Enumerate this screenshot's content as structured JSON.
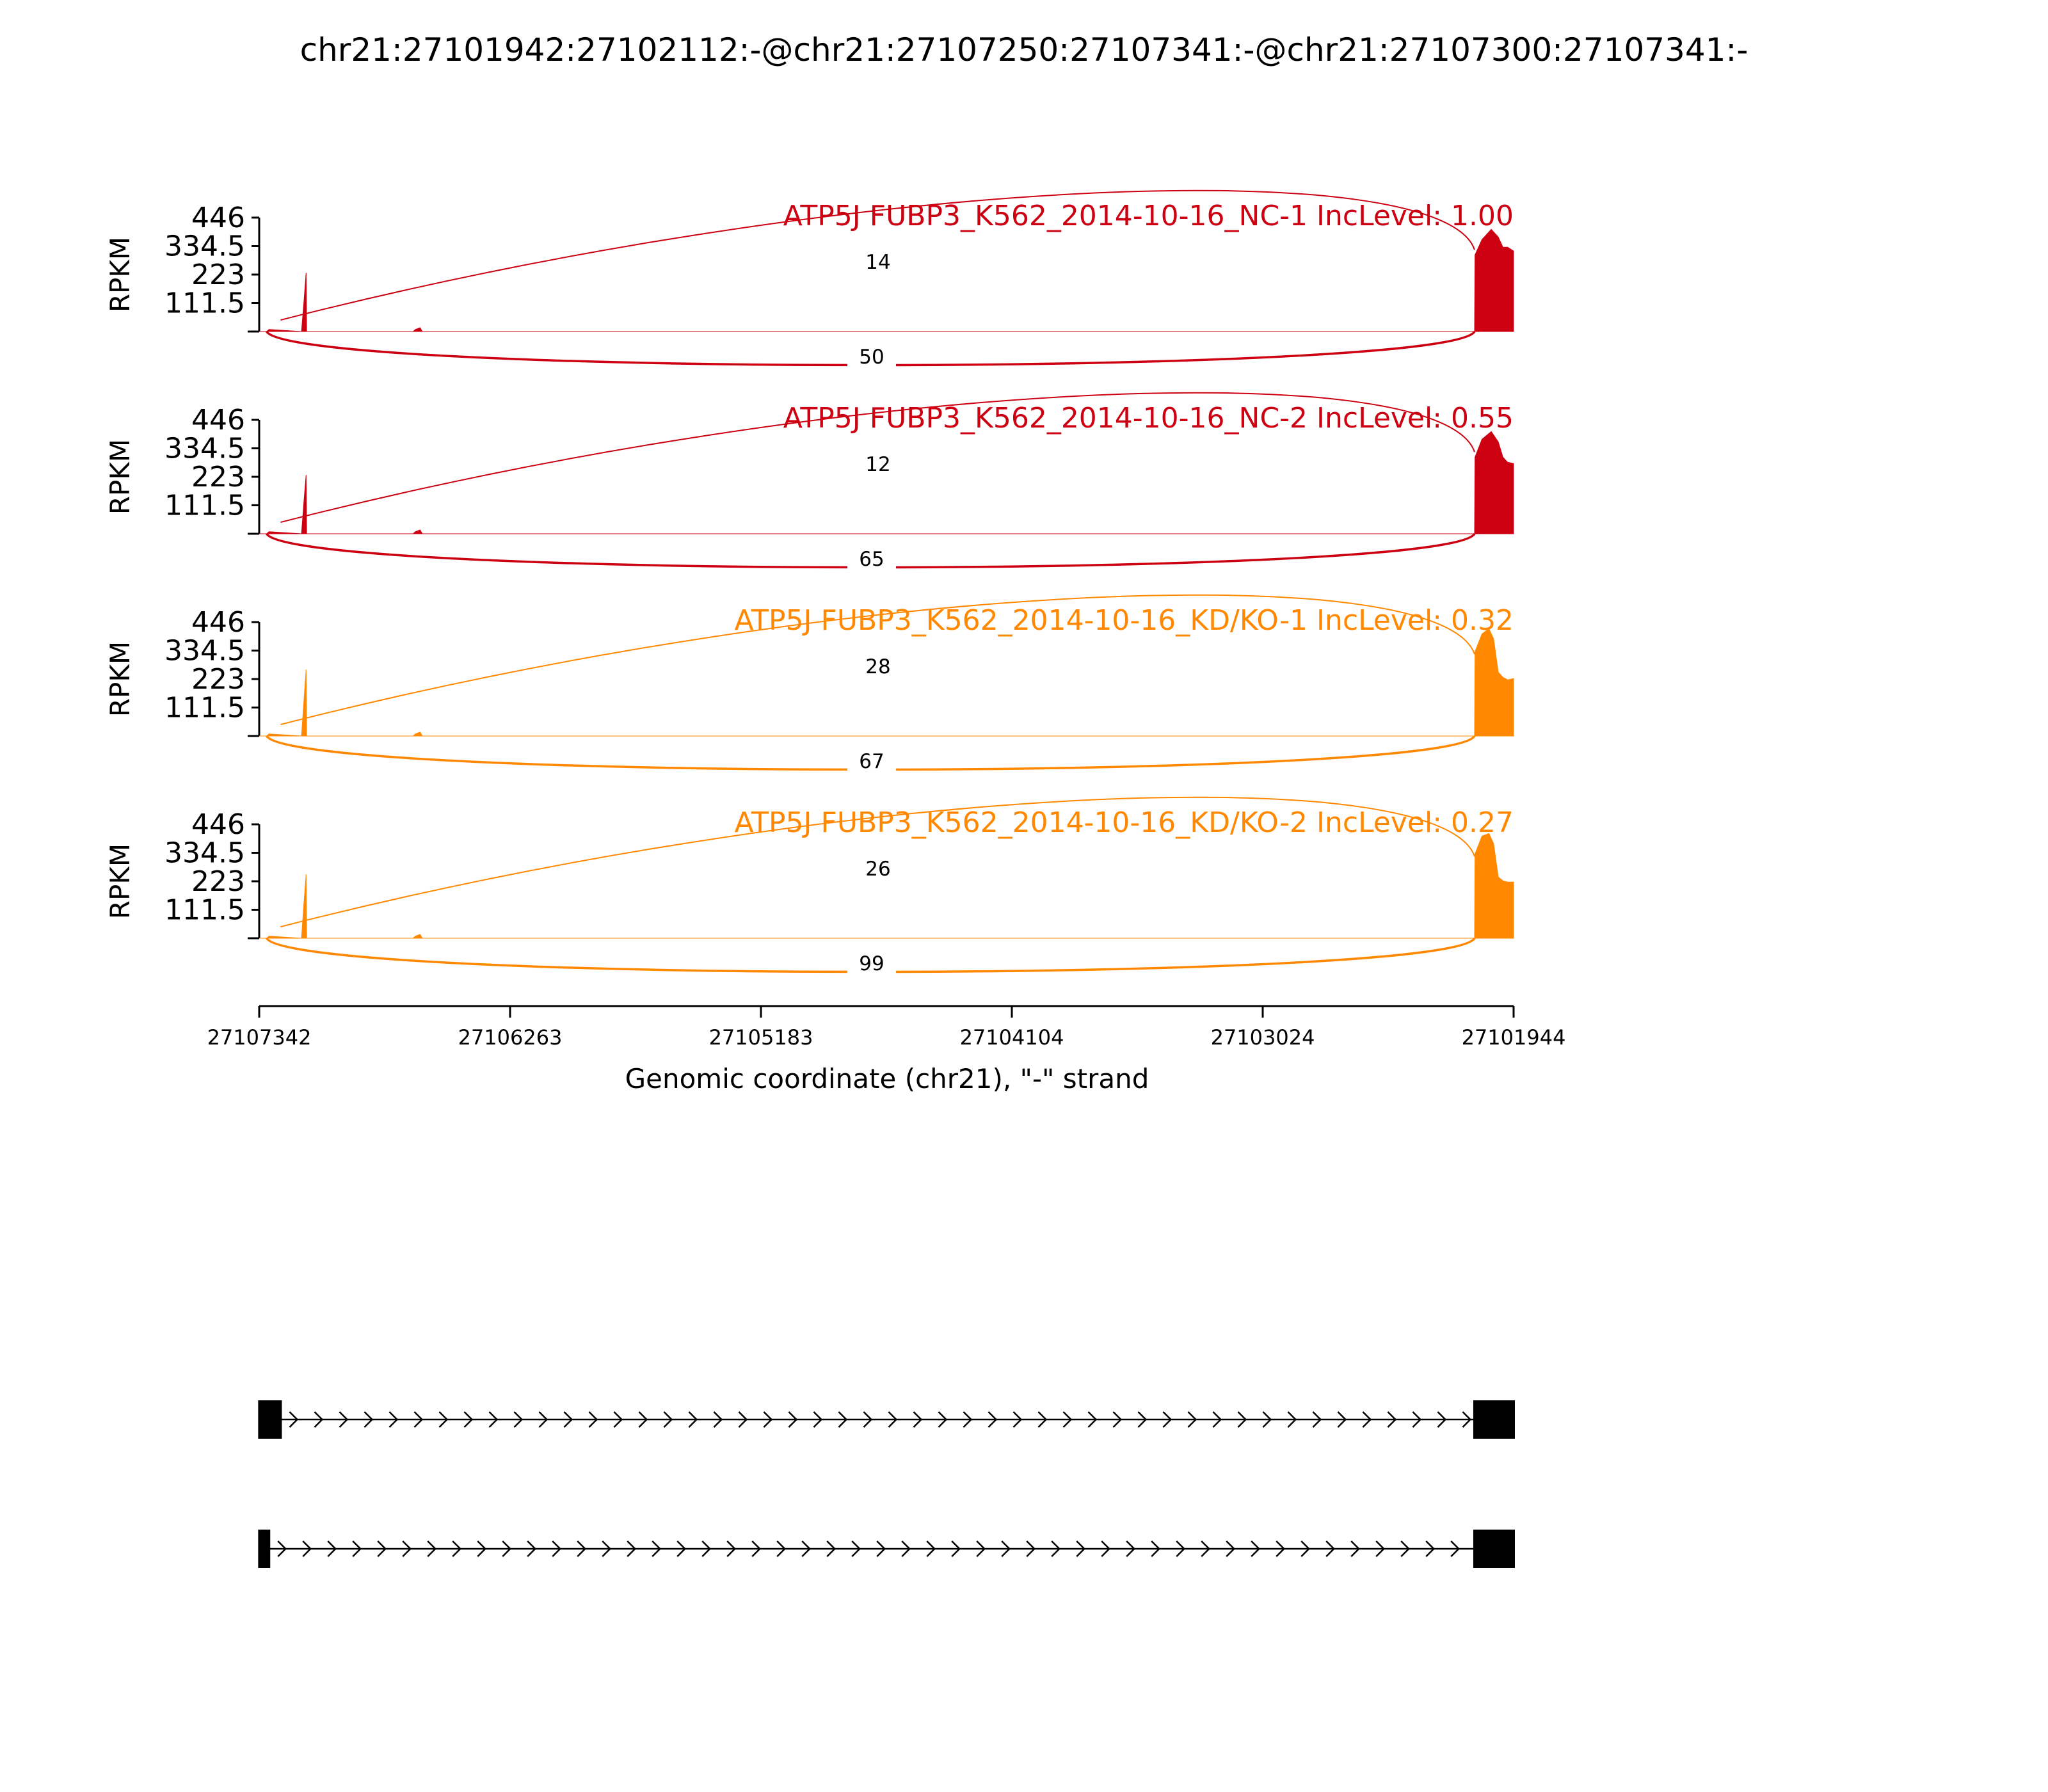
{
  "title": "chr21:27101942:27102112:-@chr21:27107250:27107341:-@chr21:27107300:27107341:-",
  "chart_data": {
    "type": "area",
    "title": "chr21:27101942:27102112:-@chr21:27107250:27107341:-@chr21:27107300:27107341:-",
    "xlabel": "Genomic coordinate (chr21), \"-\" strand",
    "ylabel": "RPKM",
    "x_reversed": true,
    "xlim": [
      27107342,
      27101944
    ],
    "x_ticks": [
      "27107342",
      "27106263",
      "27105183",
      "27104104",
      "27103024",
      "27101944"
    ],
    "ylim": [
      0,
      446
    ],
    "y_ticks": [
      "446",
      "334.5",
      "223",
      "111.5"
    ],
    "series": [
      {
        "label": "ATP5J FUBP3_K562_2014-10-16_NC-1 IncLevel: 1.00",
        "color": "#cc0011",
        "coverage": [
          [
            27107342,
            0
          ],
          [
            27107310,
            0
          ],
          [
            27107300,
            8
          ],
          [
            27107160,
            0
          ],
          [
            27107150,
            110
          ],
          [
            27107140,
            230
          ],
          [
            27107138,
            0
          ],
          [
            27106680,
            0
          ],
          [
            27106670,
            8
          ],
          [
            27106650,
            15
          ],
          [
            27106640,
            0
          ],
          [
            27102112,
            0
          ],
          [
            27102110,
            300
          ],
          [
            27102080,
            360
          ],
          [
            27102040,
            400
          ],
          [
            27102010,
            370
          ],
          [
            27101990,
            330
          ],
          [
            27101970,
            330
          ],
          [
            27101944,
            315
          ],
          [
            27101944,
            0
          ]
        ],
        "junctions": [
          {
            "from": 27107250,
            "to": 27102112,
            "count": "14",
            "side": "above"
          },
          {
            "from": 27107310,
            "to": 27102112,
            "count": "50",
            "side": "below"
          }
        ]
      },
      {
        "label": "ATP5J FUBP3_K562_2014-10-16_NC-2 IncLevel: 0.55",
        "color": "#cc0011",
        "coverage": [
          [
            27107342,
            0
          ],
          [
            27107310,
            0
          ],
          [
            27107300,
            8
          ],
          [
            27107160,
            0
          ],
          [
            27107150,
            120
          ],
          [
            27107140,
            230
          ],
          [
            27107138,
            0
          ],
          [
            27106680,
            0
          ],
          [
            27106670,
            8
          ],
          [
            27106650,
            15
          ],
          [
            27106640,
            0
          ],
          [
            27102112,
            0
          ],
          [
            27102110,
            300
          ],
          [
            27102080,
            370
          ],
          [
            27102040,
            400
          ],
          [
            27102010,
            360
          ],
          [
            27101990,
            300
          ],
          [
            27101970,
            280
          ],
          [
            27101944,
            275
          ],
          [
            27101944,
            0
          ]
        ],
        "junctions": [
          {
            "from": 27107250,
            "to": 27102112,
            "count": "12",
            "side": "above"
          },
          {
            "from": 27107310,
            "to": 27102112,
            "count": "65",
            "side": "below"
          }
        ]
      },
      {
        "label": "ATP5J FUBP3_K562_2014-10-16_KD/KO-1 IncLevel: 0.32",
        "color": "#ff8800",
        "coverage": [
          [
            27107342,
            0
          ],
          [
            27107310,
            0
          ],
          [
            27107300,
            8
          ],
          [
            27107160,
            0
          ],
          [
            27107150,
            130
          ],
          [
            27107140,
            260
          ],
          [
            27107138,
            0
          ],
          [
            27106680,
            0
          ],
          [
            27106670,
            8
          ],
          [
            27106650,
            15
          ],
          [
            27106640,
            0
          ],
          [
            27102112,
            0
          ],
          [
            27102110,
            330
          ],
          [
            27102080,
            400
          ],
          [
            27102050,
            420
          ],
          [
            27102030,
            380
          ],
          [
            27102010,
            250
          ],
          [
            27101990,
            230
          ],
          [
            27101970,
            220
          ],
          [
            27101944,
            225
          ],
          [
            27101944,
            0
          ]
        ],
        "junctions": [
          {
            "from": 27107250,
            "to": 27102112,
            "count": "28",
            "side": "above"
          },
          {
            "from": 27107310,
            "to": 27102112,
            "count": "67",
            "side": "below"
          }
        ]
      },
      {
        "label": "ATP5J FUBP3_K562_2014-10-16_KD/KO-2 IncLevel: 0.27",
        "color": "#ff8800",
        "coverage": [
          [
            27107342,
            0
          ],
          [
            27107310,
            0
          ],
          [
            27107300,
            8
          ],
          [
            27107160,
            0
          ],
          [
            27107150,
            130
          ],
          [
            27107140,
            250
          ],
          [
            27107138,
            0
          ],
          [
            27106680,
            0
          ],
          [
            27106670,
            8
          ],
          [
            27106650,
            15
          ],
          [
            27106640,
            0
          ],
          [
            27102112,
            0
          ],
          [
            27102110,
            330
          ],
          [
            27102080,
            400
          ],
          [
            27102050,
            410
          ],
          [
            27102030,
            370
          ],
          [
            27102010,
            240
          ],
          [
            27101990,
            225
          ],
          [
            27101970,
            220
          ],
          [
            27101944,
            220
          ],
          [
            27101944,
            0
          ]
        ],
        "junctions": [
          {
            "from": 27107250,
            "to": 27102112,
            "count": "26",
            "side": "above"
          },
          {
            "from": 27107310,
            "to": 27102112,
            "count": "99",
            "side": "below"
          }
        ]
      }
    ],
    "isoforms": [
      {
        "exons": [
          [
            27107341,
            27107250
          ],
          [
            27102112,
            27101944
          ]
        ]
      },
      {
        "exons": [
          [
            27107341,
            27107300
          ],
          [
            27102112,
            27101944
          ]
        ]
      }
    ]
  }
}
